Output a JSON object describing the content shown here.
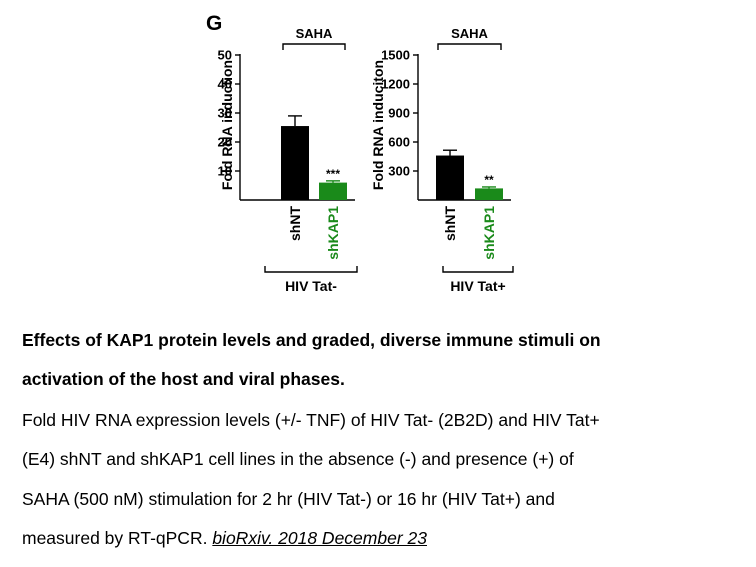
{
  "figure": {
    "panel_label": "G"
  },
  "chart_data": [
    {
      "type": "bar",
      "treatment_label": "SAHA",
      "ylabel": "Fold RNA induction",
      "ylim": [
        0,
        50
      ],
      "yticks": [
        "10",
        "20",
        "30",
        "40",
        "50"
      ],
      "categories": [
        "shNT",
        "shKAP1"
      ],
      "values": [
        25.5,
        6.0
      ],
      "errors": [
        3.5,
        0.6
      ],
      "significance": [
        "",
        "***"
      ],
      "bar_colors": [
        "#000000",
        "#1a8a1a"
      ],
      "label_colors": [
        "#000000",
        "#1a8a1a"
      ],
      "group_label": "HIV Tat-"
    },
    {
      "type": "bar",
      "treatment_label": "SAHA",
      "ylabel": "Fold RNA induciton",
      "ylim": [
        0,
        1500
      ],
      "yticks": [
        "300",
        "600",
        "900",
        "1200",
        "1500"
      ],
      "categories": [
        "shNT",
        "shKAP1"
      ],
      "values": [
        460,
        120
      ],
      "errors": [
        55,
        15
      ],
      "significance": [
        "",
        "**"
      ],
      "bar_colors": [
        "#000000",
        "#1a8a1a"
      ],
      "label_colors": [
        "#000000",
        "#1a8a1a"
      ],
      "group_label": "HIV Tat+"
    }
  ],
  "caption": {
    "title_line1": "Effects of KAP1 protein levels and graded, diverse immune stimuli on",
    "title_line2": "activation of the host and viral phases.",
    "body_line1": "Fold HIV RNA expression levels (+/- TNF) of HIV Tat- (2B2D) and HIV Tat+",
    "body_line2": "(E4) shNT and shKAP1 cell lines in the absence (-) and presence (+) of",
    "body_line3": "SAHA (500 nM) stimulation for 2 hr (HIV Tat-) or 16 hr (HIV Tat+) and",
    "body_line4_text": "measured by RT-qPCR.",
    "citation": "bioRxiv. 2018 December 23"
  }
}
